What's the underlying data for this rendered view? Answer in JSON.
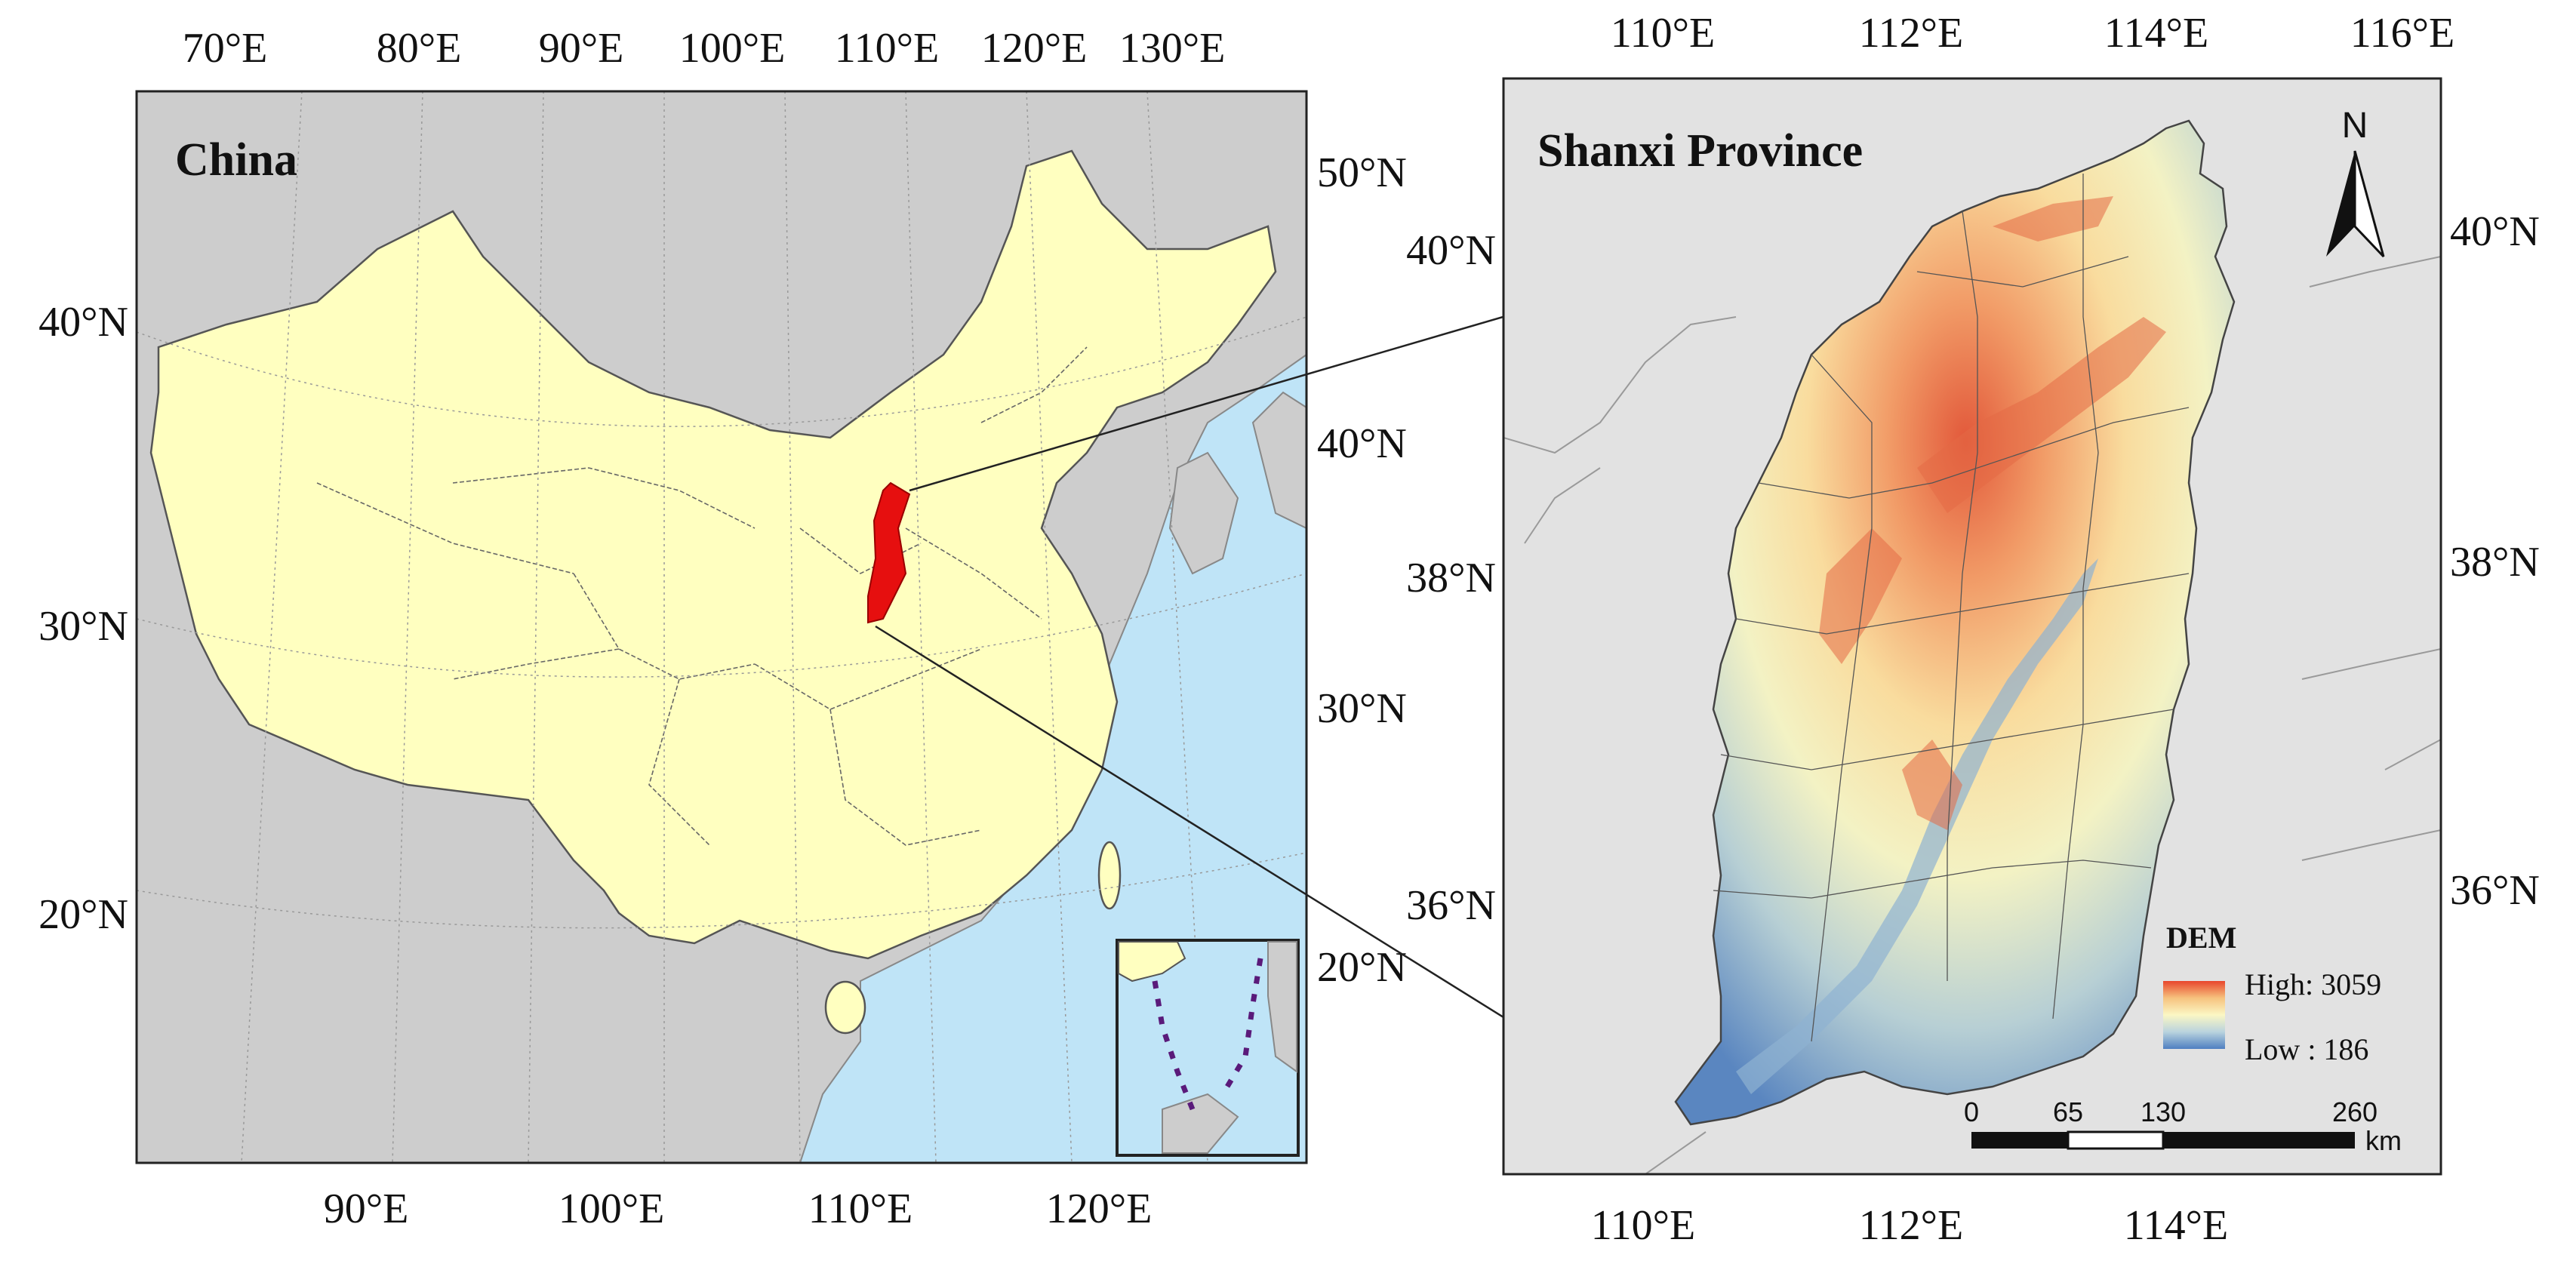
{
  "china_map": {
    "title": "China",
    "top_lon_labels": [
      "70°E",
      "80°E",
      "90°E",
      "100°E",
      "110°E",
      "120°E",
      "130°E"
    ],
    "bottom_lon_labels": [
      "90°E",
      "100°E",
      "110°E",
      "120°E"
    ],
    "left_lat_labels": [
      "40°N",
      "30°N",
      "20°N"
    ],
    "right_lat_labels": [
      "50°N",
      "40°N",
      "30°N",
      "20°N"
    ],
    "colors": {
      "ocean": "#bfe4f7",
      "neighbors": "#cdcdcd",
      "china": "#ffffc0",
      "highlight": "#e60f0f"
    }
  },
  "shanxi_map": {
    "title": "Shanxi Province",
    "top_lon_labels": [
      "110°E",
      "112°E",
      "114°E",
      "116°E"
    ],
    "bottom_lon_labels": [
      "110°E",
      "112°E",
      "114°E"
    ],
    "left_lat_labels": [
      "40°N",
      "38°N",
      "36°N"
    ],
    "right_lat_labels": [
      "40°N",
      "38°N",
      "36°N"
    ],
    "north_arrow_label": "N",
    "legend": {
      "title": "DEM",
      "high_label": "High: 3059",
      "low_label": "Low : 186",
      "gradient_colors": [
        "#e8452c",
        "#f6c27e",
        "#fbf7c4",
        "#b9d3de",
        "#4f7fc1"
      ]
    },
    "scale_bar": {
      "labels": [
        "0",
        "65",
        "130",
        "260"
      ],
      "unit": "km"
    },
    "colors": {
      "background": "#e2e2e2"
    }
  }
}
